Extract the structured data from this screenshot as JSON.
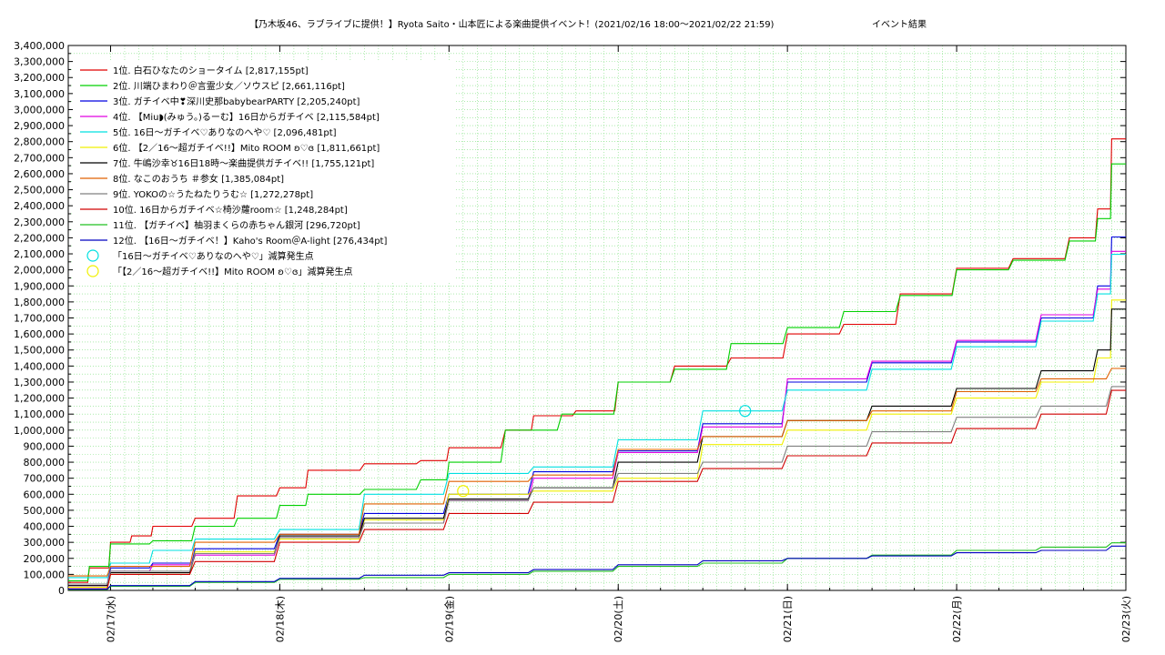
{
  "chart_data": {
    "type": "line",
    "title": "【乃木坂46、ラブライブに提供！】Ryota Saito・山本匠による楽曲提供イベント！(2021/02/16 18:00～2021/02/22 21:59)",
    "subtitle": "イベント結果",
    "xlabel": "",
    "ylabel": "",
    "ylim": [
      0,
      3400000
    ],
    "xlim": [
      "2021-02-16T18:00",
      "2021-02-23T00:00"
    ],
    "x_ticks": [
      "02/17(水)",
      "02/18(木)",
      "02/19(金)",
      "02/20(土)",
      "02/21(日)",
      "02/22(月)",
      "02/23(火)"
    ],
    "y_ticks": [
      "0",
      "100,000",
      "200,000",
      "300,000",
      "400,000",
      "500,000",
      "600,000",
      "700,000",
      "800,000",
      "900,000",
      "1,000,000",
      "1,100,000",
      "1,200,000",
      "1,300,000",
      "1,400,000",
      "1,500,000",
      "1,600,000",
      "1,700,000",
      "1,800,000",
      "1,900,000",
      "2,000,000",
      "2,100,000",
      "2,200,000",
      "2,300,000",
      "2,400,000",
      "2,500,000",
      "2,600,000",
      "2,700,000",
      "2,800,000",
      "2,900,000",
      "3,000,000",
      "3,100,000",
      "3,200,000",
      "3,300,000",
      "3,400,000"
    ],
    "grid": true,
    "legend_position": "top-left",
    "series": [
      {
        "name": "1位. 白石ひなたのショータイム [2,817,155pt]",
        "color": "#e00000",
        "x": [
          "2021-02-16T18:00",
          "2021-02-16T21:00",
          "2021-02-17T00:00",
          "2021-02-17T03:00",
          "2021-02-17T06:00",
          "2021-02-17T12:00",
          "2021-02-17T18:00",
          "2021-02-18T00:00",
          "2021-02-18T04:00",
          "2021-02-18T12:00",
          "2021-02-18T20:00",
          "2021-02-19T00:00",
          "2021-02-19T08:00",
          "2021-02-19T12:00",
          "2021-02-19T18:00",
          "2021-02-20T00:00",
          "2021-02-20T08:00",
          "2021-02-20T16:00",
          "2021-02-21T00:00",
          "2021-02-21T08:00",
          "2021-02-21T16:00",
          "2021-02-22T00:00",
          "2021-02-22T08:00",
          "2021-02-22T16:00",
          "2021-02-22T20:00",
          "2021-02-22T21:59",
          "2021-02-23T00:00"
        ],
        "y": [
          50000,
          140000,
          300000,
          340000,
          400000,
          450000,
          590000,
          640000,
          750000,
          790000,
          810000,
          890000,
          1000000,
          1090000,
          1120000,
          1300000,
          1400000,
          1450000,
          1600000,
          1660000,
          1850000,
          2010000,
          2070000,
          2200000,
          2380000,
          2817155,
          2817155
        ]
      },
      {
        "name": "2位. 川端ひまわり＠言霊少女／ソウスピ [2,661,116pt]",
        "color": "#00d000",
        "x": [
          "2021-02-16T18:00",
          "2021-02-16T21:00",
          "2021-02-17T00:00",
          "2021-02-17T06:00",
          "2021-02-17T12:00",
          "2021-02-17T18:00",
          "2021-02-18T00:00",
          "2021-02-18T04:00",
          "2021-02-18T12:00",
          "2021-02-18T20:00",
          "2021-02-19T00:00",
          "2021-02-19T08:00",
          "2021-02-19T16:00",
          "2021-02-20T00:00",
          "2021-02-20T08:00",
          "2021-02-20T16:00",
          "2021-02-21T00:00",
          "2021-02-21T08:00",
          "2021-02-21T16:00",
          "2021-02-22T00:00",
          "2021-02-22T08:00",
          "2021-02-22T16:00",
          "2021-02-22T20:00",
          "2021-02-22T21:59",
          "2021-02-23T00:00"
        ],
        "y": [
          60000,
          150000,
          290000,
          310000,
          400000,
          450000,
          530000,
          600000,
          630000,
          690000,
          800000,
          1000000,
          1100000,
          1300000,
          1380000,
          1540000,
          1640000,
          1740000,
          1840000,
          2000000,
          2060000,
          2180000,
          2320000,
          2661116,
          2661116
        ]
      },
      {
        "name": "3位. ガチイベ中❣深川史那babybearPARTY [2,205,240pt]",
        "color": "#0000e0",
        "x": [
          "2021-02-16T18:00",
          "2021-02-17T00:00",
          "2021-02-17T06:00",
          "2021-02-17T12:00",
          "2021-02-18T00:00",
          "2021-02-18T12:00",
          "2021-02-19T00:00",
          "2021-02-19T12:00",
          "2021-02-20T00:00",
          "2021-02-20T12:00",
          "2021-02-21T00:00",
          "2021-02-21T12:00",
          "2021-02-22T00:00",
          "2021-02-22T12:00",
          "2021-02-22T20:00",
          "2021-02-22T21:59",
          "2021-02-23T00:00"
        ],
        "y": [
          40000,
          140000,
          170000,
          260000,
          350000,
          480000,
          600000,
          740000,
          870000,
          1040000,
          1300000,
          1420000,
          1550000,
          1700000,
          1900000,
          2205240,
          2205240
        ]
      },
      {
        "name": "4位. 【Miu◗(みゅう。)るーむ】16日からガチイベ [2,115,584pt]",
        "color": "#e000e0",
        "x": [
          "2021-02-16T18:00",
          "2021-02-17T00:00",
          "2021-02-17T06:00",
          "2021-02-17T12:00",
          "2021-02-18T00:00",
          "2021-02-18T12:00",
          "2021-02-19T00:00",
          "2021-02-19T12:00",
          "2021-02-20T00:00",
          "2021-02-20T12:00",
          "2021-02-21T00:00",
          "2021-02-21T12:00",
          "2021-02-22T00:00",
          "2021-02-22T12:00",
          "2021-02-22T20:00",
          "2021-02-22T21:59",
          "2021-02-23T00:00"
        ],
        "y": [
          30000,
          120000,
          160000,
          220000,
          330000,
          420000,
          560000,
          700000,
          860000,
          1020000,
          1320000,
          1430000,
          1560000,
          1720000,
          1880000,
          2115584,
          2115584
        ]
      },
      {
        "name": "5位. 16日～ガチイベ♡ありなのへや♡ [2,096,481pt]",
        "color": "#00e0e0",
        "x": [
          "2021-02-16T18:00",
          "2021-02-17T00:00",
          "2021-02-17T06:00",
          "2021-02-17T12:00",
          "2021-02-18T00:00",
          "2021-02-18T12:00",
          "2021-02-19T00:00",
          "2021-02-19T12:00",
          "2021-02-20T00:00",
          "2021-02-20T12:00",
          "2021-02-21T00:00",
          "2021-02-21T12:00",
          "2021-02-22T00:00",
          "2021-02-22T12:00",
          "2021-02-22T20:00",
          "2021-02-22T21:59",
          "2021-02-23T00:00"
        ],
        "y": [
          80000,
          170000,
          250000,
          320000,
          380000,
          600000,
          730000,
          770000,
          940000,
          1120000,
          1250000,
          1380000,
          1520000,
          1680000,
          1850000,
          2096481,
          2096481
        ]
      },
      {
        "name": "6位. 【2／16～超ガチイベ!!】Mito ROOM ʚ♡ɞ [1,811,661pt]",
        "color": "#f0f000",
        "x": [
          "2021-02-16T18:00",
          "2021-02-17T00:00",
          "2021-02-17T12:00",
          "2021-02-18T00:00",
          "2021-02-18T12:00",
          "2021-02-19T00:00",
          "2021-02-19T12:00",
          "2021-02-20T00:00",
          "2021-02-20T12:00",
          "2021-02-21T00:00",
          "2021-02-21T12:00",
          "2021-02-22T00:00",
          "2021-02-22T12:00",
          "2021-02-22T20:00",
          "2021-02-22T21:59",
          "2021-02-23T00:00"
        ],
        "y": [
          20000,
          100000,
          240000,
          320000,
          440000,
          600000,
          620000,
          700000,
          910000,
          1000000,
          1100000,
          1200000,
          1300000,
          1450000,
          1811661,
          1811661
        ]
      },
      {
        "name": "7位. 牛嶋沙幸♉16日18時～楽曲提供ガチイベ!! [1,755,121pt]",
        "color": "#000000",
        "x": [
          "2021-02-16T18:00",
          "2021-02-17T00:00",
          "2021-02-17T12:00",
          "2021-02-18T00:00",
          "2021-02-18T12:00",
          "2021-02-19T00:00",
          "2021-02-19T12:00",
          "2021-02-20T00:00",
          "2021-02-20T12:00",
          "2021-02-21T00:00",
          "2021-02-21T12:00",
          "2021-02-22T00:00",
          "2021-02-22T12:00",
          "2021-02-22T20:00",
          "2021-02-22T21:59",
          "2021-02-23T00:00"
        ],
        "y": [
          30000,
          110000,
          230000,
          340000,
          450000,
          570000,
          640000,
          800000,
          960000,
          1060000,
          1150000,
          1260000,
          1370000,
          1500000,
          1755121,
          1755121
        ]
      },
      {
        "name": "8位. なこのおうち ＃参女 [1,385,084pt]",
        "color": "#e06000",
        "x": [
          "2021-02-16T18:00",
          "2021-02-17T00:00",
          "2021-02-17T12:00",
          "2021-02-18T00:00",
          "2021-02-18T12:00",
          "2021-02-19T00:00",
          "2021-02-19T12:00",
          "2021-02-20T00:00",
          "2021-02-20T12:00",
          "2021-02-21T00:00",
          "2021-02-21T12:00",
          "2021-02-22T00:00",
          "2021-02-22T12:00",
          "2021-02-22T21:59",
          "2021-02-23T00:00"
        ],
        "y": [
          90000,
          150000,
          300000,
          350000,
          540000,
          680000,
          720000,
          880000,
          960000,
          1060000,
          1120000,
          1240000,
          1320000,
          1385084,
          1385084
        ]
      },
      {
        "name": "9位. YOKOの☆うたねたりうむ☆ [1,272,278pt]",
        "color": "#808080",
        "x": [
          "2021-02-16T18:00",
          "2021-02-17T00:00",
          "2021-02-17T12:00",
          "2021-02-18T00:00",
          "2021-02-18T12:00",
          "2021-02-19T00:00",
          "2021-02-19T12:00",
          "2021-02-20T00:00",
          "2021-02-20T12:00",
          "2021-02-21T00:00",
          "2021-02-21T12:00",
          "2021-02-22T00:00",
          "2021-02-22T12:00",
          "2021-02-22T21:59",
          "2021-02-23T00:00"
        ],
        "y": [
          40000,
          120000,
          230000,
          330000,
          420000,
          560000,
          640000,
          730000,
          800000,
          900000,
          990000,
          1080000,
          1150000,
          1272278,
          1272278
        ]
      },
      {
        "name": "10位. 16日からガチイベ☆椅沙蘿room☆ [1,248,284pt]",
        "color": "#d00000",
        "x": [
          "2021-02-16T18:00",
          "2021-02-17T00:00",
          "2021-02-17T12:00",
          "2021-02-18T00:00",
          "2021-02-18T12:00",
          "2021-02-19T00:00",
          "2021-02-19T12:00",
          "2021-02-20T00:00",
          "2021-02-20T12:00",
          "2021-02-21T00:00",
          "2021-02-21T12:00",
          "2021-02-22T00:00",
          "2021-02-22T12:00",
          "2021-02-22T21:59",
          "2021-02-23T00:00"
        ],
        "y": [
          10000,
          100000,
          180000,
          300000,
          380000,
          480000,
          550000,
          680000,
          760000,
          840000,
          920000,
          1010000,
          1100000,
          1248284,
          1248284
        ]
      },
      {
        "name": "11位. 【ガチイベ】柚羽まくらの赤ちゃん銀河 [296,720pt]",
        "color": "#20c020",
        "x": [
          "2021-02-16T18:00",
          "2021-02-17T00:00",
          "2021-02-17T12:00",
          "2021-02-18T00:00",
          "2021-02-18T12:00",
          "2021-02-19T00:00",
          "2021-02-19T12:00",
          "2021-02-20T00:00",
          "2021-02-20T12:00",
          "2021-02-21T00:00",
          "2021-02-21T12:00",
          "2021-02-22T00:00",
          "2021-02-22T12:00",
          "2021-02-22T21:59",
          "2021-02-23T00:00"
        ],
        "y": [
          5000,
          25000,
          50000,
          70000,
          80000,
          100000,
          120000,
          150000,
          170000,
          200000,
          220000,
          250000,
          270000,
          296720,
          296720
        ]
      },
      {
        "name": "12位. 【16日～ガチイベ！】Kaho's Room＠A-light [276,434pt]",
        "color": "#0000c0",
        "x": [
          "2021-02-16T18:00",
          "2021-02-17T00:00",
          "2021-02-17T12:00",
          "2021-02-18T00:00",
          "2021-02-18T12:00",
          "2021-02-19T00:00",
          "2021-02-19T12:00",
          "2021-02-20T00:00",
          "2021-02-20T12:00",
          "2021-02-21T00:00",
          "2021-02-21T12:00",
          "2021-02-22T00:00",
          "2021-02-22T12:00",
          "2021-02-22T21:59",
          "2021-02-23T00:00"
        ],
        "y": [
          8000,
          30000,
          55000,
          75000,
          95000,
          110000,
          130000,
          160000,
          185000,
          200000,
          215000,
          235000,
          250000,
          276434,
          276434
        ]
      }
    ],
    "markers": [
      {
        "label": "「16日～ガチイベ♡ありなのへや♡」減算発生点",
        "color": "#00e0e0",
        "x": "2021-02-20T18:00",
        "y": 1120000
      },
      {
        "label": "「【2／16～超ガチイベ!!】Mito ROOM ʚ♡ɞ」減算発生点",
        "color": "#f0f000",
        "x": "2021-02-19T02:00",
        "y": 620000
      }
    ]
  }
}
